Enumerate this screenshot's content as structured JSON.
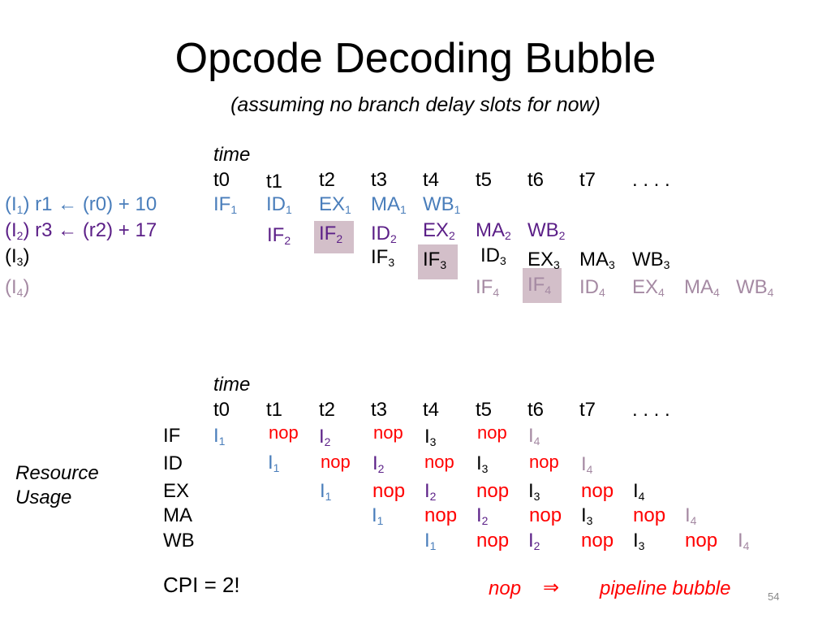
{
  "slide": {
    "title": "Opcode Decoding Bubble",
    "subtitle": "(assuming no branch delay slots for now)",
    "page_number": "54"
  },
  "colors": {
    "i1": "#4a7ebb",
    "i2": "#5b1f87",
    "i3": "#000000",
    "i4": "#a58aa3",
    "nop": "#ff0000",
    "highlight": "#d3bfc9"
  },
  "pipeline": {
    "time_label": "time",
    "times": [
      "t0",
      "t1",
      "t2",
      "t3",
      "t4",
      "t5",
      "t6",
      "t7",
      ". . . ."
    ],
    "instructions": [
      {
        "name": "I",
        "idx": "1",
        "rest": " r1 ← (r0) + 10"
      },
      {
        "name": "I",
        "idx": "2",
        "rest": " r3 ← (r2) + 17"
      },
      {
        "name": "I",
        "idx": "3",
        "rest": ""
      },
      {
        "name": "I",
        "idx": "4",
        "rest": ""
      }
    ],
    "stages": {
      "if": "IF",
      "id": "ID",
      "ex": "EX",
      "ma": "MA",
      "wb": "WB",
      "i1": "1",
      "i2": "2",
      "i3": "3",
      "i4": "4"
    }
  },
  "resource": {
    "time_label": "time",
    "times": [
      "t0",
      "t1",
      "t2",
      "t3",
      "t4",
      "t5",
      "t6",
      "t7",
      ". . . ."
    ],
    "label_line1": "Resource",
    "label_line2": "Usage",
    "stages": [
      "IF",
      "ID",
      "EX",
      "MA",
      "WB"
    ],
    "instr": "I",
    "nop": "nop",
    "idx": [
      "1",
      "2",
      "3",
      "4"
    ]
  },
  "footer": {
    "cpi": "CPI = 2!",
    "legend_nop": "nop",
    "legend_arrow": "⇒",
    "legend_text": "pipeline bubble"
  }
}
